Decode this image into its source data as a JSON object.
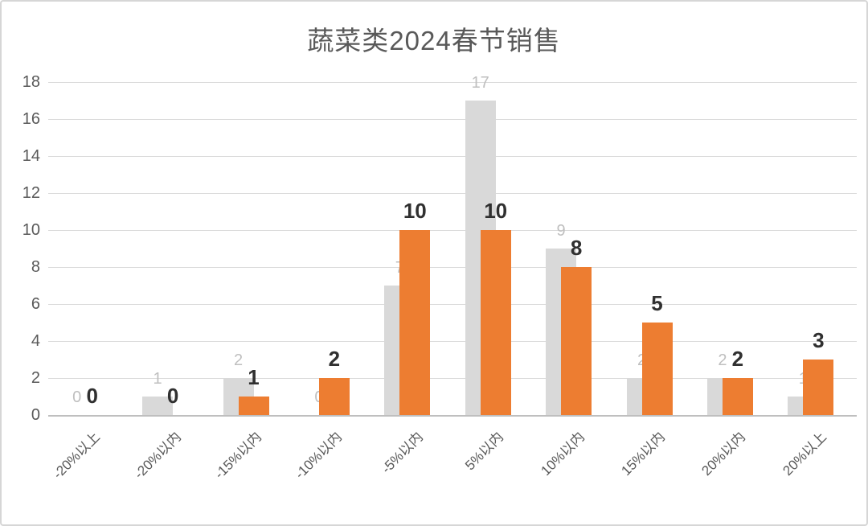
{
  "chart_data": {
    "type": "bar",
    "title": "蔬菜类2024春节销售",
    "categories": [
      "-20%以上",
      "-20%以内",
      "-15%以内",
      "-10%以内",
      "-5%以内",
      "5%以内",
      "10%以内",
      "15%以内",
      "20%以内",
      "20%以上"
    ],
    "series": [
      {
        "name": "gray",
        "values": [
          0,
          1,
          2,
          0,
          7,
          17,
          9,
          2,
          2,
          1
        ],
        "bar_color": "#d9d9d9",
        "label_color": "#bfbfbf",
        "label_bold": false
      },
      {
        "name": "orange",
        "values": [
          0,
          0,
          1,
          2,
          10,
          10,
          8,
          5,
          2,
          3
        ],
        "bar_color": "#ed7d31",
        "label_color": "#303030",
        "label_bold": true
      }
    ],
    "xlabel": "",
    "ylabel": "",
    "ylim": [
      0,
      18
    ],
    "ytick_step": 2,
    "yticks": [
      0,
      2,
      4,
      6,
      8,
      10,
      12,
      14,
      16,
      18
    ],
    "grid": "horizontal",
    "legend_position": "none",
    "data_labels": "outside-end",
    "colors": {
      "gridline": "#d9d9d9",
      "axis_line": "#bfbfbf",
      "tick_label": "#595959",
      "title": "#595959"
    }
  }
}
